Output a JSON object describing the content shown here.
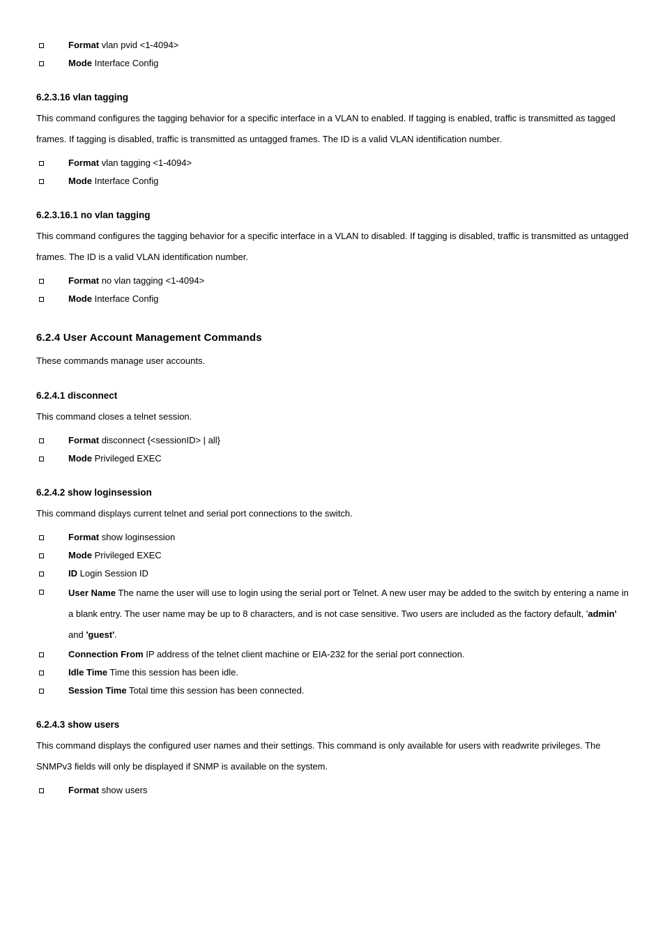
{
  "sections": {
    "vlan_tagging_top": {
      "format": {
        "label": "Format",
        "value": "vlan pvid <1-4094>"
      },
      "mode": {
        "label": "Mode",
        "value": "Interface Config"
      },
      "title": "6.2.3.16 vlan tagging",
      "text": "This command configures the tagging behavior for a specific interface in a VLAN to enabled. If tagging is enabled, traffic is transmitted as tagged frames. If tagging is disabled, traffic is transmitted as untagged frames. The ID is a valid VLAN identification number.",
      "bullets": {
        "format": {
          "label": "Format",
          "value": "vlan tagging <1-4094>"
        },
        "mode": {
          "label": "Mode",
          "value": "Interface Config"
        }
      }
    },
    "no_vlan_tagging": {
      "title": "6.2.3.16.1 no vlan tagging",
      "text": "This command configures the tagging behavior for a specific interface in a VLAN to disabled. If tagging is disabled, traffic is transmitted as untagged frames. The ID is a valid VLAN identification number.",
      "bullets": {
        "format": {
          "label": "Format",
          "value": "no vlan tagging <1-4094>"
        },
        "mode": {
          "label": "Mode",
          "value": "Interface Config"
        }
      }
    },
    "user_accounts": {
      "title": "6.2.4 User Account Management Commands",
      "text": "These commands manage user accounts."
    },
    "disconnect": {
      "title": "6.2.4.1 disconnect",
      "text": "This command closes a telnet session.",
      "bullets": {
        "format": {
          "label": "Format",
          "value": "disconnect {<sessionID> | all}"
        },
        "mode": {
          "label": "Mode",
          "value": "Privileged EXEC"
        }
      }
    },
    "show_loginsession": {
      "title": "6.2.4.2 show loginsession",
      "text": "This command displays current telnet and serial port connections to the switch.",
      "bullets": {
        "format": {
          "label": "Format",
          "value": "show loginsession"
        },
        "mode": {
          "label": "Mode",
          "value": "Privileged EXEC"
        },
        "id": {
          "label": "ID",
          "value": "Login Session ID"
        },
        "username": {
          "label": "User Name",
          "text_before": "The name the user will use to login using the serial port or Telnet. A new user may be added to the switch by entering a name in a blank entry. The user name may be up to 8 characters, and is not case sensitive. Two users are included as the factory default, '",
          "default_user_1": "admin'",
          "connector": " and ",
          "default_user_2": "'guest'",
          "text_after": "."
        },
        "connfrom": {
          "label": "Connection From",
          "value": "IP address of the telnet client machine or EIA-232 for the serial port connection."
        },
        "idle": {
          "label": "Idle Time",
          "value": "Time this session has been idle."
        },
        "session": {
          "label": "Session Time",
          "value": "Total time this session has been connected."
        }
      }
    },
    "show_users": {
      "title": "6.2.4.3 show users",
      "text": "This command displays the configured user names and their settings. This command is only available for users with readwrite privileges. The SNMPv3 fields will only be displayed if SNMP is available on the system.",
      "bullets": {
        "format": {
          "label": "Format",
          "value": "show users"
        }
      }
    }
  }
}
